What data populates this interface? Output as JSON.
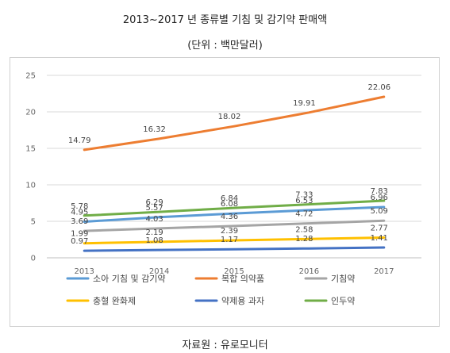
{
  "header": {
    "title": "2013~2017 년 종류별 기침 및 감기약 판매액",
    "unit": "(단위 : 백만달러)"
  },
  "source": "자료원 : 유로모니터",
  "chart_data": {
    "type": "line",
    "title": "2013~2017 년 종류별 기침 및 감기약 판매액",
    "subtitle": "(단위 : 백만달러)",
    "xlabel": "",
    "ylabel": "",
    "categories": [
      "2013",
      "2014",
      "2015",
      "2016",
      "2017"
    ],
    "ylim": [
      0,
      25
    ],
    "yticks": [
      "0",
      "5",
      "10",
      "15",
      "20",
      "25"
    ],
    "grid": true,
    "legend_position": "bottom",
    "series": [
      {
        "name": "소아 기침 및 감기약",
        "color": "#5B9BD5",
        "values": [
          4.95,
          5.57,
          6.08,
          6.53,
          6.96
        ]
      },
      {
        "name": "복합 의약품",
        "color": "#ED7D31",
        "values": [
          14.79,
          16.32,
          18.02,
          19.91,
          22.06
        ]
      },
      {
        "name": "기침약",
        "color": "#A5A5A5",
        "values": [
          3.69,
          4.03,
          4.36,
          4.72,
          5.09
        ]
      },
      {
        "name": "충혈 완화제",
        "color": "#FFC000",
        "values": [
          1.99,
          2.19,
          2.39,
          2.58,
          2.77
        ]
      },
      {
        "name": "약제용 과자",
        "color": "#4472C4",
        "values": [
          0.97,
          1.08,
          1.17,
          1.28,
          1.41
        ]
      },
      {
        "name": "인두약",
        "color": "#70AD47",
        "values": [
          5.78,
          6.29,
          6.84,
          7.33,
          7.83
        ]
      }
    ]
  }
}
